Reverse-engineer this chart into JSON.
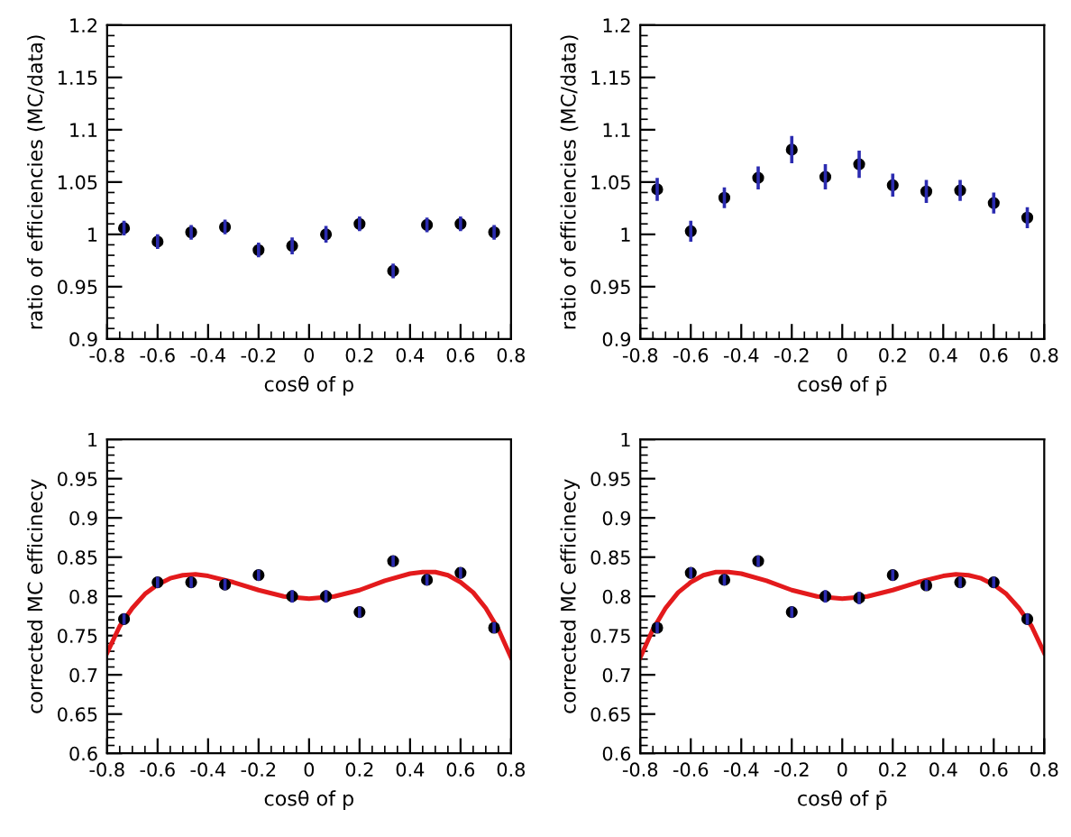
{
  "chart_data": [
    {
      "type": "scatter",
      "xlabel": "cosθ of p",
      "ylabel": "ratio of efficiencies (MC/data)",
      "xlim": [
        -0.8,
        0.8
      ],
      "ylim": [
        0.9,
        1.2
      ],
      "xticks": [
        -0.8,
        -0.6,
        -0.4,
        -0.2,
        0,
        0.2,
        0.4,
        0.6,
        0.8
      ],
      "yticks": [
        0.9,
        0.95,
        1,
        1.05,
        1.1,
        1.15,
        1.2
      ],
      "marker": "circle",
      "grid": false,
      "legend": false,
      "series": [
        {
          "color": "#000000",
          "x": [
            -0.733,
            -0.6,
            -0.467,
            -0.333,
            -0.2,
            -0.067,
            0.067,
            0.2,
            0.333,
            0.467,
            0.6,
            0.733
          ],
          "values": [
            1.006,
            0.993,
            1.002,
            1.007,
            0.985,
            0.989,
            1.0,
            1.01,
            0.965,
            1.009,
            1.01,
            1.002
          ],
          "errors": [
            0.007,
            0.007,
            0.007,
            0.007,
            0.007,
            0.008,
            0.008,
            0.007,
            0.007,
            0.007,
            0.007,
            0.007
          ]
        }
      ]
    },
    {
      "type": "scatter",
      "xlabel": "cosθ of p̄",
      "ylabel": "ratio of efficiencies (MC/data)",
      "xlim": [
        -0.8,
        0.8
      ],
      "ylim": [
        0.9,
        1.2
      ],
      "xticks": [
        -0.8,
        -0.6,
        -0.4,
        -0.2,
        0,
        0.2,
        0.4,
        0.6,
        0.8
      ],
      "yticks": [
        0.9,
        0.95,
        1,
        1.05,
        1.1,
        1.15,
        1.2
      ],
      "marker": "circle",
      "grid": false,
      "legend": false,
      "series": [
        {
          "color": "#000000",
          "x": [
            -0.733,
            -0.6,
            -0.467,
            -0.333,
            -0.2,
            -0.067,
            0.067,
            0.2,
            0.333,
            0.467,
            0.6,
            0.733
          ],
          "values": [
            1.043,
            1.003,
            1.035,
            1.054,
            1.081,
            1.055,
            1.067,
            1.047,
            1.041,
            1.042,
            1.03,
            1.016
          ],
          "errors": [
            0.011,
            0.01,
            0.01,
            0.011,
            0.013,
            0.012,
            0.013,
            0.011,
            0.011,
            0.01,
            0.01,
            0.01
          ]
        }
      ]
    },
    {
      "type": "scatter",
      "xlabel": "cosθ of p",
      "ylabel": "corrected MC efficinecy",
      "xlim": [
        -0.8,
        0.8
      ],
      "ylim": [
        0.6,
        1
      ],
      "xticks": [
        -0.8,
        -0.6,
        -0.4,
        -0.2,
        0,
        0.2,
        0.4,
        0.6,
        0.8
      ],
      "yticks": [
        0.6,
        0.65,
        0.7,
        0.75,
        0.8,
        0.85,
        0.9,
        0.95,
        1
      ],
      "marker": "circle",
      "grid": false,
      "legend": false,
      "series": [
        {
          "type": "line",
          "color": "#e31a1c",
          "marker": "none",
          "x": [
            -0.8,
            -0.75,
            -0.7,
            -0.65,
            -0.6,
            -0.55,
            -0.5,
            -0.45,
            -0.4,
            -0.3,
            -0.2,
            -0.1,
            0,
            0.1,
            0.2,
            0.3,
            0.4,
            0.45,
            0.5,
            0.55,
            0.6,
            0.65,
            0.7,
            0.75,
            0.8
          ],
          "values": [
            0.728,
            0.762,
            0.785,
            0.803,
            0.815,
            0.823,
            0.827,
            0.828,
            0.826,
            0.818,
            0.808,
            0.8,
            0.797,
            0.8,
            0.808,
            0.82,
            0.829,
            0.831,
            0.831,
            0.827,
            0.818,
            0.805,
            0.785,
            0.758,
            0.722
          ]
        },
        {
          "color": "#000000",
          "x": [
            -0.733,
            -0.6,
            -0.467,
            -0.333,
            -0.2,
            -0.067,
            0.067,
            0.2,
            0.333,
            0.467,
            0.6,
            0.733
          ],
          "values": [
            0.771,
            0.818,
            0.818,
            0.815,
            0.827,
            0.8,
            0.8,
            0.78,
            0.845,
            0.821,
            0.83,
            0.76
          ],
          "errors": [
            0.007,
            0.007,
            0.007,
            0.007,
            0.007,
            0.008,
            0.008,
            0.007,
            0.007,
            0.007,
            0.007,
            0.007
          ]
        }
      ]
    },
    {
      "type": "scatter",
      "xlabel": "cosθ of p̄",
      "ylabel": "corrected MC efficinecy",
      "xlim": [
        -0.8,
        0.8
      ],
      "ylim": [
        0.6,
        1
      ],
      "xticks": [
        -0.8,
        -0.6,
        -0.4,
        -0.2,
        0,
        0.2,
        0.4,
        0.6,
        0.8
      ],
      "yticks": [
        0.6,
        0.65,
        0.7,
        0.75,
        0.8,
        0.85,
        0.9,
        0.95,
        1
      ],
      "marker": "circle",
      "grid": false,
      "legend": false,
      "series": [
        {
          "type": "line",
          "color": "#e31a1c",
          "marker": "none",
          "x": [
            -0.8,
            -0.75,
            -0.7,
            -0.65,
            -0.6,
            -0.55,
            -0.5,
            -0.45,
            -0.4,
            -0.3,
            -0.2,
            -0.1,
            0,
            0.1,
            0.2,
            0.3,
            0.4,
            0.45,
            0.5,
            0.55,
            0.6,
            0.65,
            0.7,
            0.75,
            0.8
          ],
          "values": [
            0.722,
            0.758,
            0.785,
            0.805,
            0.818,
            0.827,
            0.831,
            0.831,
            0.829,
            0.82,
            0.808,
            0.8,
            0.797,
            0.8,
            0.808,
            0.818,
            0.826,
            0.828,
            0.827,
            0.823,
            0.815,
            0.803,
            0.785,
            0.762,
            0.728
          ]
        },
        {
          "color": "#000000",
          "x": [
            -0.733,
            -0.6,
            -0.467,
            -0.333,
            -0.2,
            -0.067,
            0.067,
            0.2,
            0.333,
            0.467,
            0.6,
            0.733
          ],
          "values": [
            0.76,
            0.83,
            0.821,
            0.845,
            0.78,
            0.8,
            0.798,
            0.827,
            0.814,
            0.818,
            0.818,
            0.771
          ],
          "errors": [
            0.007,
            0.007,
            0.007,
            0.007,
            0.007,
            0.008,
            0.008,
            0.007,
            0.007,
            0.007,
            0.007,
            0.007
          ]
        }
      ]
    }
  ]
}
